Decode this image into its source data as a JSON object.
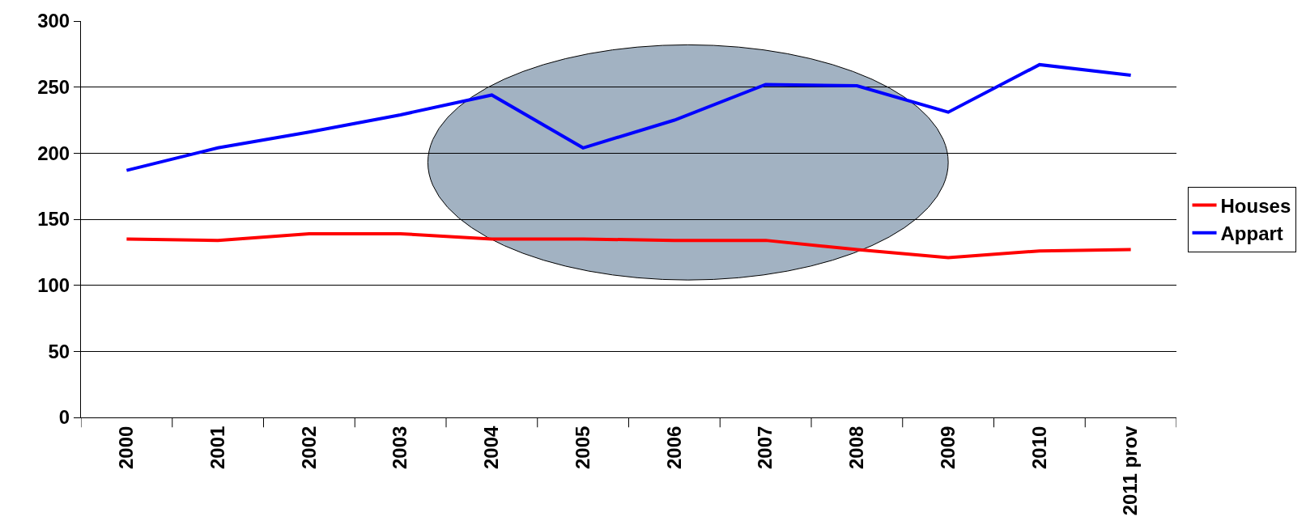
{
  "chart_data": {
    "type": "line",
    "categories": [
      "2000",
      "2001",
      "2002",
      "2003",
      "2004",
      "2005",
      "2006",
      "2007",
      "2008",
      "2009",
      "2010",
      "2011 prov"
    ],
    "series": [
      {
        "name": "Houses",
        "color": "#ff0000",
        "values": [
          135,
          134,
          139,
          139,
          135,
          135,
          134,
          134,
          127,
          121,
          126,
          127
        ]
      },
      {
        "name": "Appart",
        "color": "#0000ff",
        "values": [
          187,
          204,
          216,
          229,
          244,
          204,
          225,
          252,
          251,
          231,
          267,
          259
        ]
      }
    ],
    "ylim": [
      0,
      300
    ],
    "yticks": [
      0,
      50,
      100,
      150,
      200,
      250,
      300
    ],
    "grid": "y",
    "legend": "right",
    "marker": "none",
    "line_style": "solid"
  }
}
